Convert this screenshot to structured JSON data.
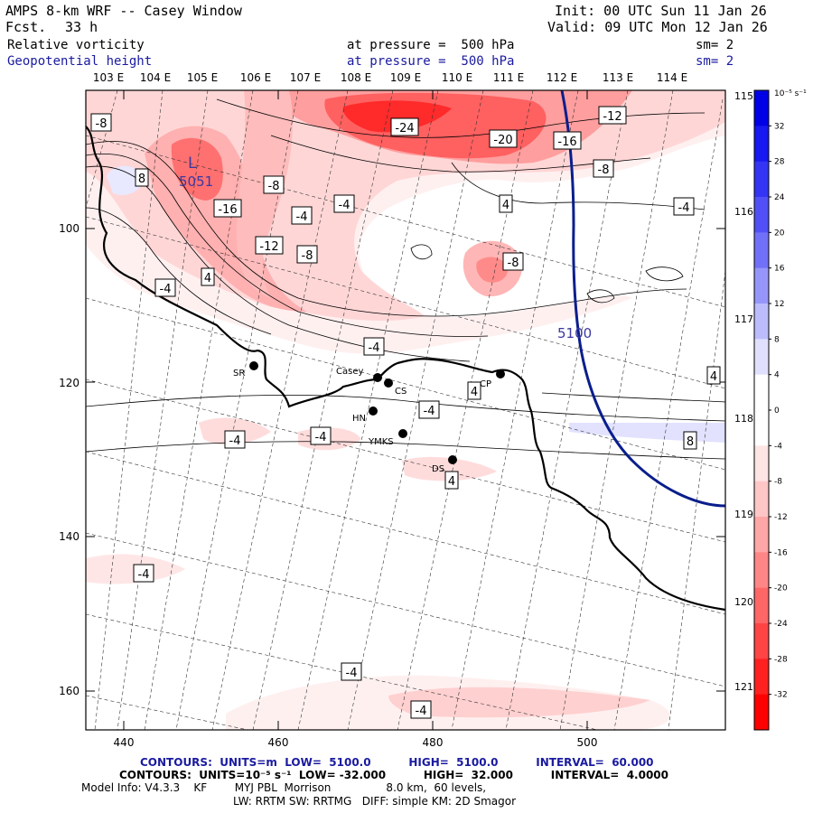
{
  "header": {
    "title": "AMPS 8-km WRF -- Casey Window",
    "forecast_label": "Fcst.",
    "forecast_value": "33 h",
    "init": "Init: 00 UTC Sun 11 Jan 26",
    "valid": "Valid: 09 UTC Mon 12 Jan 26",
    "field1_name": "Relative vorticity",
    "field1_level": "at pressure =  500 hPa",
    "field1_smooth": "sm= 2",
    "field2_name": "Geopotential height",
    "field2_level": "at pressure =  500 hPa",
    "field2_smooth": "sm= 2"
  },
  "axes": {
    "lon_top": [
      "103 E",
      "104 E",
      "105 E",
      "106 E",
      "107 E",
      "108 E",
      "109 E",
      "110 E",
      "111 E",
      "112 E",
      "113 E",
      "114 E"
    ],
    "lon_right": [
      "115 E",
      "116 E",
      "117 E",
      "118 E",
      "119 E",
      "120 E",
      "121 E"
    ],
    "y_ticks": [
      "100",
      "120",
      "140",
      "160"
    ],
    "x_ticks": [
      "440",
      "460",
      "480",
      "500"
    ]
  },
  "colorbar": {
    "unit_label": "10⁻⁵ s⁻¹",
    "labels": [
      "32",
      "28",
      "24",
      "20",
      "16",
      "12",
      "8",
      "4",
      "0",
      "-4",
      "-8",
      "-12",
      "-16",
      "-20",
      "-24",
      "-28",
      "-32"
    ]
  },
  "contour_labels": [
    "-8",
    "-24",
    "-12",
    "-20",
    "-16",
    "-8",
    "8",
    "-8",
    "-16",
    "-4",
    "-4",
    "4",
    "-4",
    "-12",
    "-8",
    "-8",
    "4",
    "-4",
    "-4",
    "4",
    "4",
    "-4",
    "-4",
    "-4",
    "8",
    "4",
    "-4",
    "-4",
    "-4",
    "-8"
  ],
  "features": {
    "low_marker": "L",
    "low_value": "5051",
    "height_line_label": "5100"
  },
  "stations": [
    "SR",
    "Casey",
    "CS",
    "CP",
    "HN",
    "YMKS",
    "DS"
  ],
  "footer": {
    "contours1": "CONTOURS:  UNITS=m  LOW=  5100.0          HIGH=  5100.0          INTERVAL=  60.000",
    "contours2": "CONTOURS:  UNITS=10⁻⁵ s⁻¹  LOW= -32.000          HIGH=  32.000          INTERVAL=  4.0000",
    "model_info": "Model Info: V4.3.3    KF        MYJ PBL  Morrison                8.0 km,  60 levels,",
    "physics": "LW: RRTM SW: RRTMG   DIFF: simple KM: 2D Smagor"
  },
  "colors": {
    "neg_strong": "#ff3030",
    "neg_mid": "#ff8c8c",
    "neg_light": "#ffd0d0",
    "neg_faint": "#fff0f0",
    "pos_light": "#ececff",
    "pos_strong": "#1010e0",
    "height_line": "#0a1e8c"
  }
}
